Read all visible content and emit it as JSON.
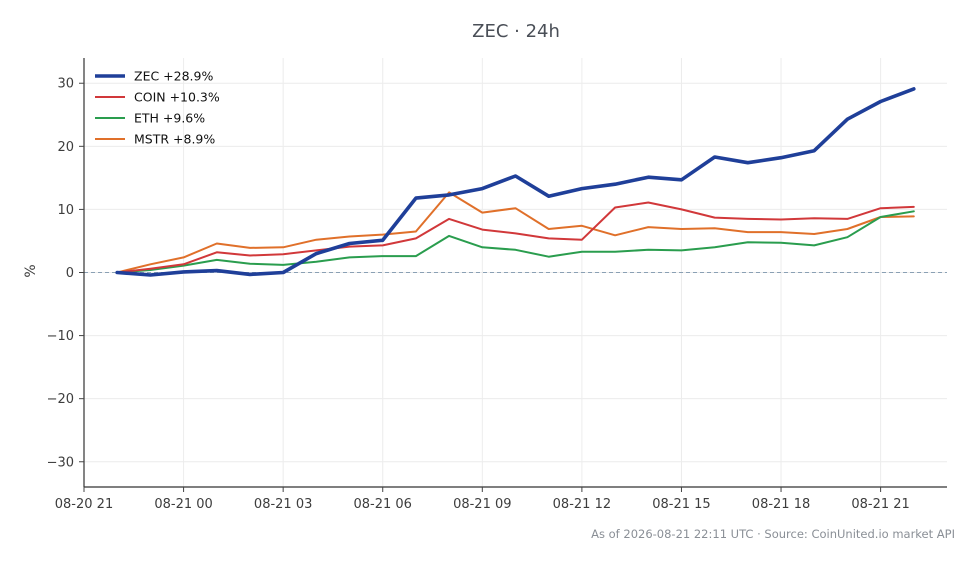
{
  "chart_data": {
    "type": "line",
    "title": "ZEC · 24h",
    "ylabel": "%",
    "xlabel": "",
    "ylim": [
      -34,
      34
    ],
    "yticks": [
      30,
      20,
      10,
      0,
      -10,
      -20,
      -30
    ],
    "ytick_labels": [
      "30",
      "20",
      "10",
      "0",
      "−10",
      "−20",
      "−30"
    ],
    "xticks": [
      {
        "t": 0,
        "label": "08-20 21"
      },
      {
        "t": 3,
        "label": "08-21 00"
      },
      {
        "t": 6,
        "label": "08-21 03"
      },
      {
        "t": 9,
        "label": "08-21 06"
      },
      {
        "t": 12,
        "label": "08-21 09"
      },
      {
        "t": 15,
        "label": "08-21 12"
      },
      {
        "t": 18,
        "label": "08-21 15"
      },
      {
        "t": 21,
        "label": "08-21 18"
      },
      {
        "t": 24,
        "label": "08-21 21"
      }
    ],
    "xlim": [
      0,
      26
    ],
    "x": [
      1,
      2,
      3,
      4,
      5,
      6,
      7,
      8,
      9,
      10,
      11,
      12,
      13,
      14,
      15,
      16,
      17,
      18,
      19,
      20,
      21,
      22,
      23,
      24,
      25
    ],
    "zero_line": true,
    "grid": true,
    "legend_position": "top-left",
    "series": [
      {
        "name": "ZEC +28.9%",
        "color": "#1f3f99",
        "width": 3.6,
        "values": [
          0.0,
          -0.4,
          0.1,
          0.3,
          -0.3,
          0.0,
          3.0,
          4.6,
          5.1,
          11.8,
          12.3,
          13.3,
          15.3,
          12.1,
          13.3,
          14.0,
          15.1,
          14.7,
          18.3,
          17.4,
          18.2,
          19.3,
          24.3,
          27.1,
          29.1
        ]
      },
      {
        "name": "COIN +10.3%",
        "color": "#d1383a",
        "width": 2,
        "values": [
          0.0,
          0.6,
          1.3,
          3.2,
          2.7,
          2.9,
          3.5,
          4.1,
          4.3,
          5.4,
          8.5,
          6.8,
          6.2,
          5.4,
          5.2,
          10.3,
          11.1,
          10.0,
          8.7,
          8.5,
          8.4,
          8.6,
          8.5,
          10.2,
          10.4
        ]
      },
      {
        "name": "ETH +9.6%",
        "color": "#2a9d4e",
        "width": 2,
        "values": [
          0.0,
          0.4,
          1.1,
          2.0,
          1.4,
          1.2,
          1.7,
          2.4,
          2.6,
          2.6,
          5.8,
          4.0,
          3.6,
          2.5,
          3.3,
          3.3,
          3.6,
          3.5,
          4.0,
          4.8,
          4.7,
          4.3,
          5.6,
          8.8,
          9.7
        ]
      },
      {
        "name": "MSTR +8.9%",
        "color": "#e0702a",
        "width": 2,
        "values": [
          0.0,
          1.3,
          2.4,
          4.6,
          3.9,
          4.0,
          5.2,
          5.7,
          6.0,
          6.5,
          12.7,
          9.5,
          10.2,
          6.9,
          7.4,
          5.9,
          7.2,
          6.9,
          7.0,
          6.4,
          6.4,
          6.1,
          6.9,
          8.8,
          8.9
        ]
      }
    ]
  },
  "footer": "As of 2026-08-21 22:11 UTC · Source: CoinUnited.io market API"
}
